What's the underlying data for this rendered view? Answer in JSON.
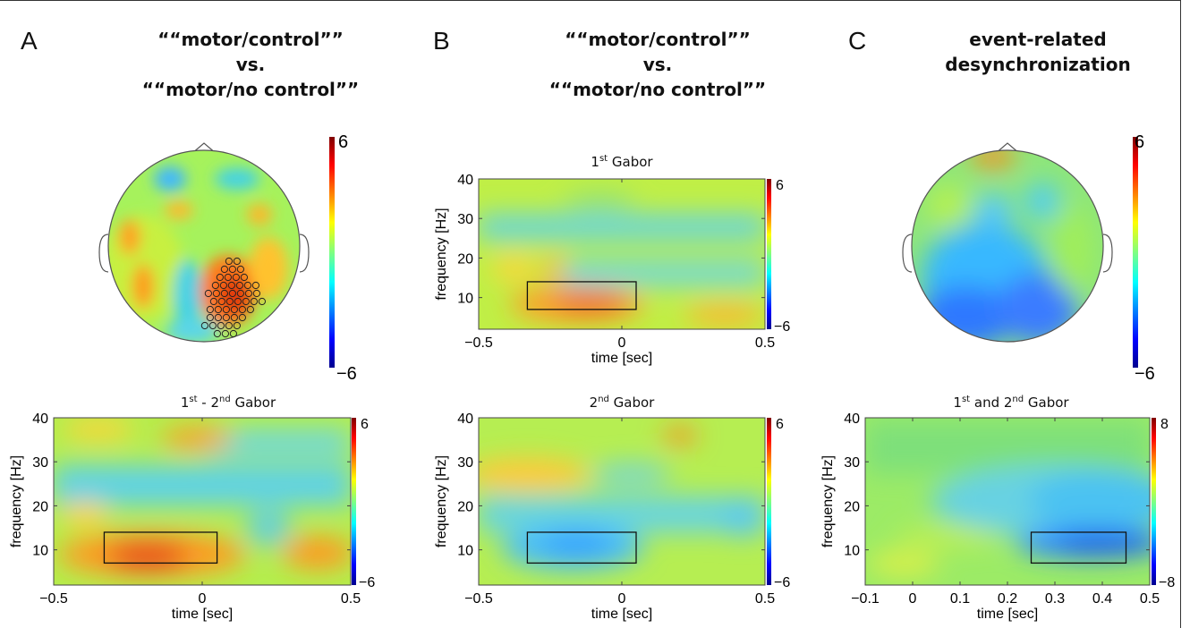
{
  "panels": {
    "A": {
      "letter": "A",
      "title_lines": [
        "““motor/control””",
        "vs.",
        "““motor/no control””"
      ]
    },
    "B": {
      "letter": "B",
      "title_lines": [
        "““motor/control””",
        "vs.",
        "““motor/no control””"
      ]
    },
    "C": {
      "letter": "C",
      "title_lines": [
        "event-related",
        "desynchronization"
      ]
    }
  },
  "chart_data": [
    {
      "id": "A-topo",
      "type": "heatmap",
      "kind": "topographic scalp map",
      "colorbar": {
        "min": -6,
        "max": 6,
        "ticks": [
          "6",
          "−6"
        ]
      },
      "highlight": "cluster of marked electrodes over right centro-parietal region (positive values)",
      "colors": {
        "min": "#00008f",
        "mid": "#7fff7f",
        "max": "#800000"
      }
    },
    {
      "id": "A-tf",
      "type": "heatmap",
      "title_parts": {
        "pre": "1",
        "sup1": "st",
        "mid": " - 2",
        "sup2": "nd",
        "post": " Gabor"
      },
      "xlabel": "time [sec]",
      "ylabel": "frequency [Hz]",
      "xlim": [
        -0.5,
        0.5
      ],
      "ylim": [
        2,
        40
      ],
      "xticks": [
        "−0.5",
        "0",
        "0.5"
      ],
      "yticks": [
        "40",
        "30",
        "20",
        "10"
      ],
      "colorbar": {
        "min": -6,
        "max": 6,
        "ticks": [
          "6",
          "−6"
        ]
      },
      "roi": {
        "t0": -0.33,
        "t1": 0.05,
        "f0": 7,
        "f1": 14
      }
    },
    {
      "id": "B-tf1",
      "type": "heatmap",
      "title_parts": {
        "pre": "1",
        "sup1": "st",
        "mid": " Gabor",
        "sup2": "",
        "post": ""
      },
      "xlabel": "time [sec]",
      "ylabel": "frequency [Hz]",
      "xlim": [
        -0.5,
        0.5
      ],
      "ylim": [
        2,
        40
      ],
      "xticks": [
        "−0.5",
        "0",
        "0.5"
      ],
      "yticks": [
        "40",
        "30",
        "20",
        "10"
      ],
      "colorbar": {
        "min": -6,
        "max": 6,
        "ticks": [
          "6",
          "−6"
        ]
      },
      "roi": {
        "t0": -0.33,
        "t1": 0.05,
        "f0": 7,
        "f1": 14
      }
    },
    {
      "id": "B-tf2",
      "type": "heatmap",
      "title_parts": {
        "pre": "2",
        "sup1": "nd",
        "mid": " Gabor",
        "sup2": "",
        "post": ""
      },
      "xlabel": "time [sec]",
      "ylabel": "frequency [Hz]",
      "xlim": [
        -0.5,
        0.5
      ],
      "ylim": [
        2,
        40
      ],
      "xticks": [
        "−0.5",
        "0",
        "0.5"
      ],
      "yticks": [
        "40",
        "30",
        "20",
        "10"
      ],
      "colorbar": {
        "min": -6,
        "max": 6,
        "ticks": [
          "6",
          "−6"
        ]
      },
      "roi": {
        "t0": -0.33,
        "t1": 0.05,
        "f0": 7,
        "f1": 14
      }
    },
    {
      "id": "C-topo",
      "type": "heatmap",
      "kind": "topographic scalp map",
      "colorbar": {
        "min": -6,
        "max": 6,
        "ticks": [
          "6",
          "−6"
        ]
      },
      "colors": {
        "min": "#00008f",
        "mid": "#7fff7f",
        "max": "#800000"
      }
    },
    {
      "id": "C-tf",
      "type": "heatmap",
      "title_parts": {
        "pre": "1",
        "sup1": "st",
        "mid": " and 2",
        "sup2": "nd",
        "post": " Gabor"
      },
      "xlabel": "time [sec]",
      "ylabel": "frequency [Hz]",
      "xlim": [
        -0.1,
        0.5
      ],
      "ylim": [
        2,
        40
      ],
      "xticks": [
        "−0.1",
        "0",
        "0.1",
        "0.2",
        "0.3",
        "0.4",
        "0.5"
      ],
      "yticks": [
        "40",
        "30",
        "20",
        "10"
      ],
      "colorbar": {
        "min": -8,
        "max": 8,
        "ticks": [
          "8",
          "−8"
        ]
      },
      "roi": {
        "t0": 0.25,
        "t1": 0.45,
        "f0": 7,
        "f1": 14
      }
    }
  ]
}
